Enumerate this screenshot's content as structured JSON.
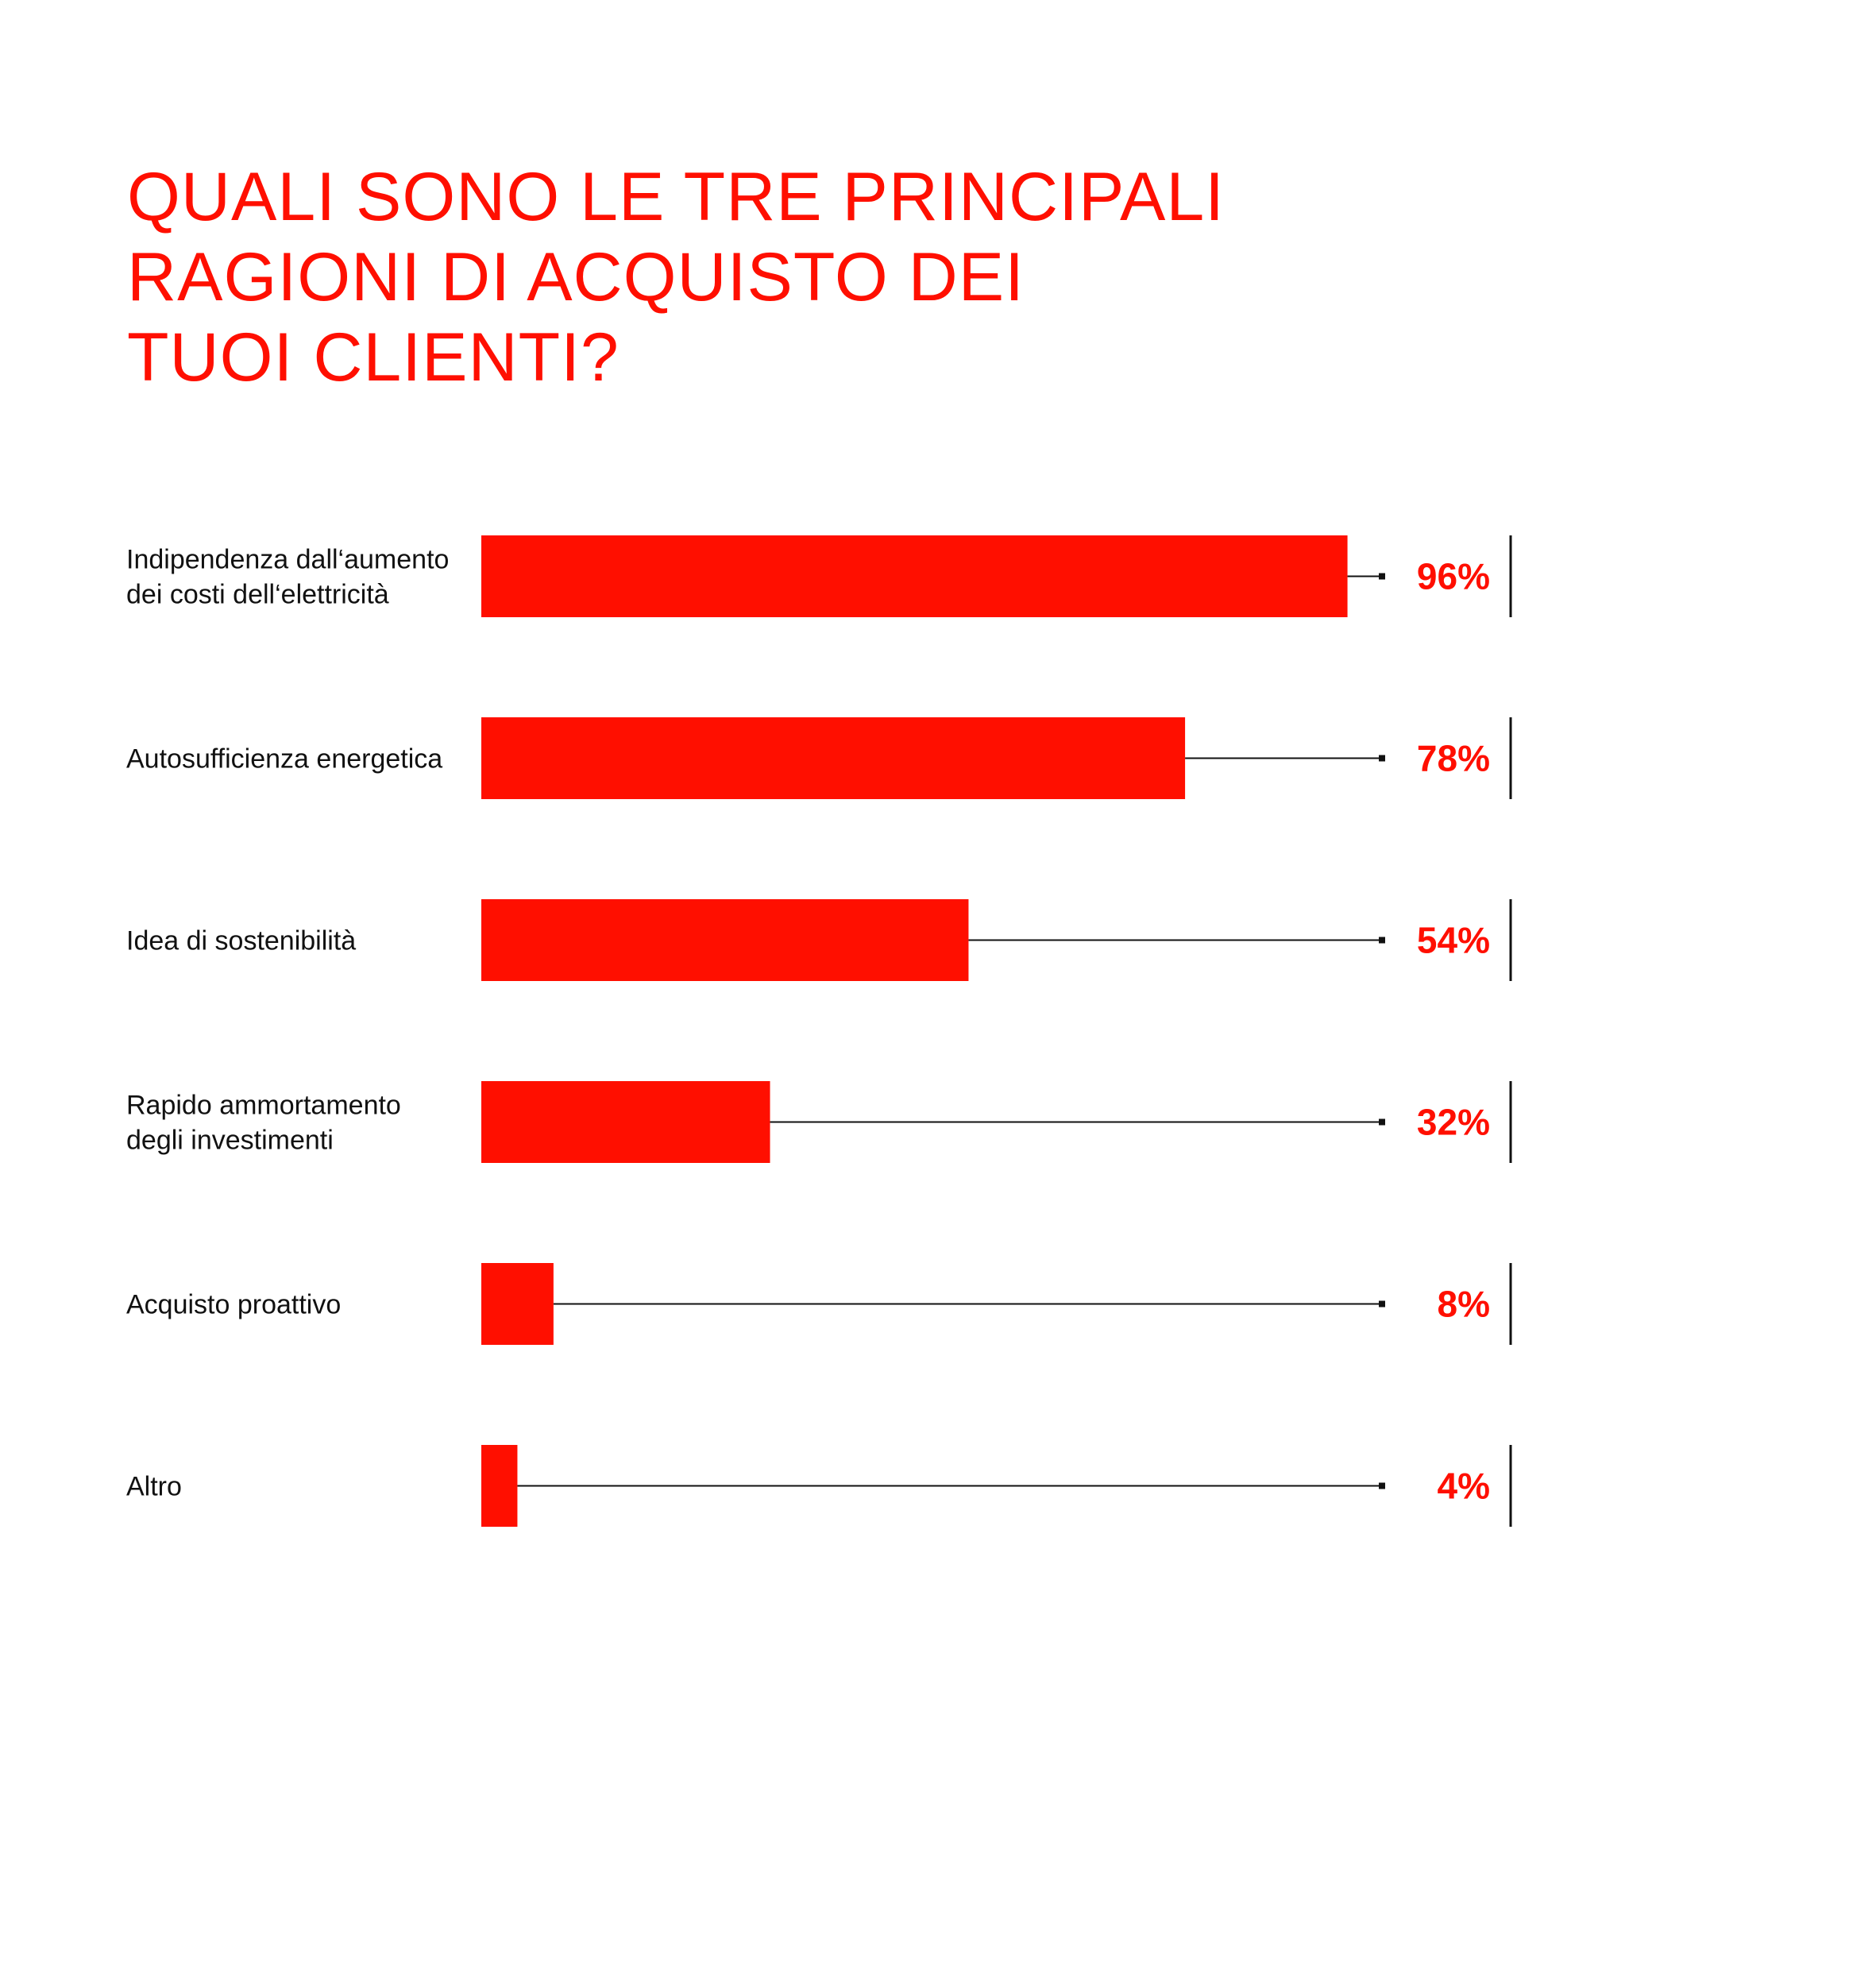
{
  "colors": {
    "bar": "#ff0f00",
    "value_text": "#ff0f00",
    "title": "#ff0f00",
    "leader": "#111111",
    "label": "#111111"
  },
  "chart_data": {
    "type": "bar",
    "orientation": "horizontal",
    "title_lines": [
      "QUALI SONO LE TRE PRINCIPALI",
      "RAGIONI DI ACQUISTO DEI",
      "TUOI CLIENTI?"
    ],
    "categories": [
      [
        "Indipendenza dall‘aumento",
        "dei costi dell‘elettricità"
      ],
      [
        "Autosufficienza energetica"
      ],
      [
        "Idea di sostenibilità"
      ],
      [
        "Rapido ammortamento",
        "degli investimenti"
      ],
      [
        "Acquisto proattivo"
      ],
      [
        "Altro"
      ]
    ],
    "values": [
      96,
      78,
      54,
      32,
      8,
      4
    ],
    "value_labels": [
      "96%",
      "78%",
      "54%",
      "32%",
      "8%",
      "4%"
    ],
    "xlim": [
      0,
      100
    ],
    "unit": "%",
    "grid": false,
    "legend": "none"
  }
}
